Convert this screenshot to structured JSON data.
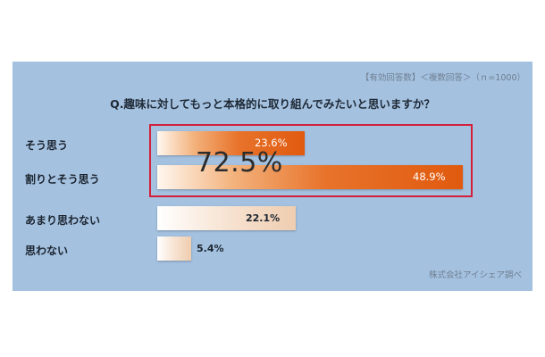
{
  "header": {
    "note": "【有効回答数】＜複数回答＞（ｎ=1000）",
    "question": "Q.趣味に対してもっと本格的に取り組んでみたいと思いますか？"
  },
  "highlight_total": "72.5%",
  "source": "株式会社アイシェア調べ",
  "colors": {
    "panel": "#a4c1e0",
    "highlight_bar": "#e05a0f",
    "highlight_box": "#d2203a",
    "other_bar": "#efcdb0"
  },
  "chart_data": {
    "type": "bar",
    "orientation": "horizontal",
    "unit": "%",
    "categories": [
      "そう思う",
      "割りとそう思う",
      "あまり思わない",
      "思わない"
    ],
    "values": [
      23.6,
      48.9,
      22.1,
      5.4
    ],
    "labels": [
      "23.6%",
      "48.9%",
      "22.1%",
      "5.4%"
    ],
    "highlighted": [
      true,
      true,
      false,
      false
    ],
    "grid": false
  }
}
